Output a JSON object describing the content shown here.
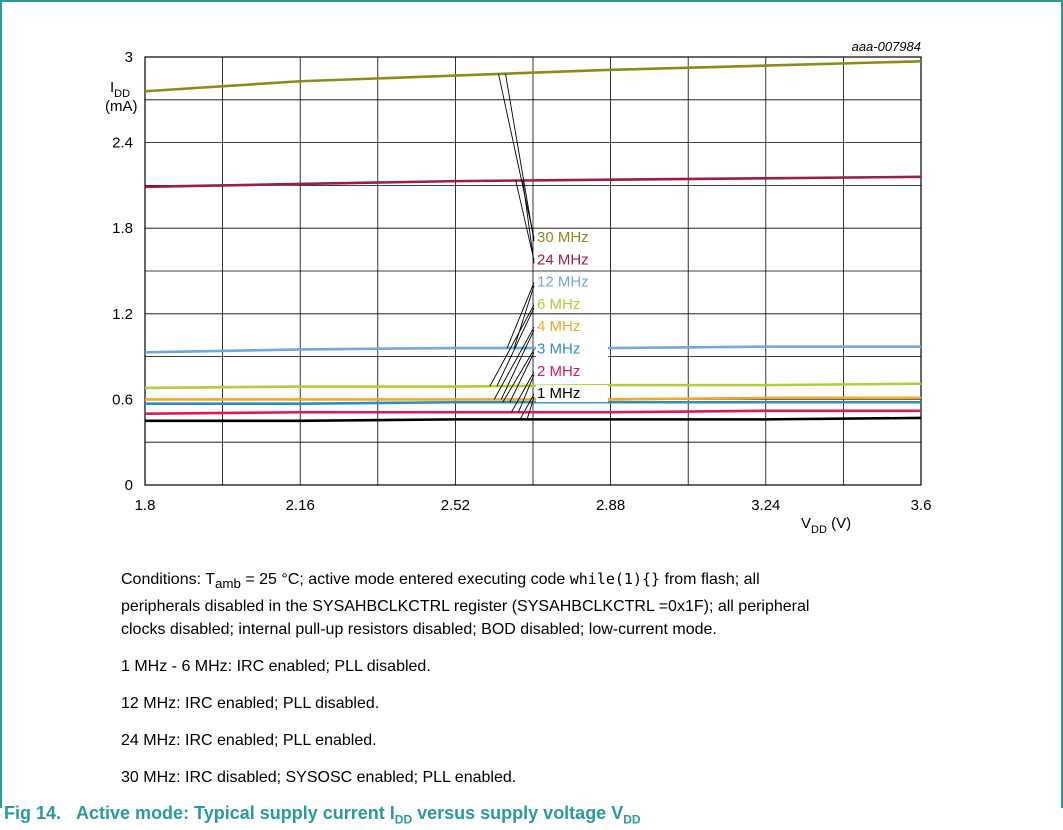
{
  "figure_id": "aaa-007984",
  "conditions": {
    "prefix": "Conditions: T",
    "tamb_sub": "amb",
    "middle": " = 25 °C; active mode entered executing code ",
    "code": "while(1){}",
    "rest_line1": " from flash; all",
    "line2": "peripherals disabled in the SYSAHBCLKCTRL register (SYSAHBCLKCTRL =0x1F); all peripheral",
    "line3": "clocks disabled; internal pull-up resistors disabled; BOD disabled; low-current mode."
  },
  "notes": [
    "1 MHz - 6 MHz: IRC enabled; PLL disabled.",
    "12 MHz: IRC enabled; PLL disabled.",
    "24 MHz: IRC enabled; PLL enabled.",
    "30 MHz: IRC disabled; SYSOSC enabled; PLL enabled."
  ],
  "caption": {
    "label": "Fig 14.",
    "text_a": "Active mode: Typical supply current I",
    "sub_a": "DD",
    "text_b": " versus supply voltage V",
    "sub_b": "DD"
  },
  "chart_data": {
    "type": "line",
    "ylabel_main": "I",
    "ylabel_sub": "DD",
    "ylabel_unit": "(mA)",
    "xlabel_main": "V",
    "xlabel_sub": "DD",
    "xlabel_unit": " (V)",
    "xlim": [
      1.8,
      3.6
    ],
    "ylim": [
      0,
      3.0
    ],
    "x_ticks": [
      1.8,
      2.16,
      2.52,
      2.88,
      3.24,
      3.6
    ],
    "x_tick_labels": [
      "1.8",
      "2.16",
      "2.52",
      "2.88",
      "3.24",
      "3.6"
    ],
    "y_ticks": [
      0,
      0.6,
      1.2,
      1.8,
      2.4,
      3.0
    ],
    "y_tick_labels": [
      "0",
      "0.6",
      "1.2",
      "1.8",
      "2.4",
      "3"
    ],
    "grid": true,
    "x": [
      1.8,
      2.16,
      2.52,
      2.88,
      3.24,
      3.6
    ],
    "series": [
      {
        "name": "30 MHz",
        "color": "#8b8b1a",
        "values": [
          2.76,
          2.83,
          2.87,
          2.91,
          2.94,
          2.97
        ]
      },
      {
        "name": "24 MHz",
        "color": "#9b1c4e",
        "values": [
          2.09,
          2.11,
          2.13,
          2.14,
          2.15,
          2.16
        ]
      },
      {
        "name": "12 MHz",
        "color": "#6fa8dc",
        "values": [
          0.93,
          0.95,
          0.96,
          0.96,
          0.97,
          0.97
        ]
      },
      {
        "name": "6 MHz",
        "color": "#b5cc3a",
        "values": [
          0.68,
          0.69,
          0.69,
          0.7,
          0.7,
          0.71
        ]
      },
      {
        "name": "4 MHz",
        "color": "#f5a623",
        "values": [
          0.6,
          0.6,
          0.6,
          0.6,
          0.61,
          0.61
        ]
      },
      {
        "name": "3 MHz",
        "color": "#2a8fc4",
        "values": [
          0.57,
          0.57,
          0.58,
          0.58,
          0.58,
          0.58
        ]
      },
      {
        "name": "2 MHz",
        "color": "#d81b60",
        "values": [
          0.5,
          0.51,
          0.51,
          0.51,
          0.52,
          0.52
        ]
      },
      {
        "name": "1 MHz",
        "color": "#000000",
        "values": [
          0.45,
          0.45,
          0.46,
          0.46,
          0.46,
          0.47
        ]
      }
    ]
  }
}
